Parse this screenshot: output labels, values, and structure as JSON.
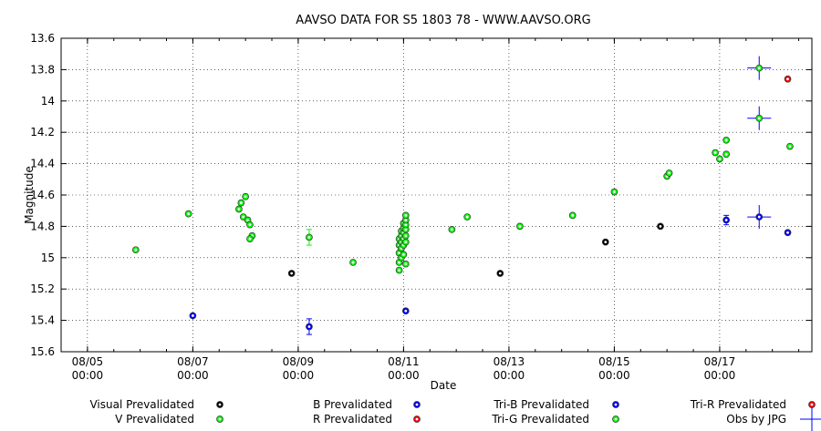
{
  "chart_data": {
    "type": "scatter",
    "title": "AAVSO DATA FOR S5 1803 78 - WWW.AAVSO.ORG",
    "xlabel": "Date",
    "ylabel": "Magnitude",
    "x_unit": "days",
    "xlim": [
      "2000-08-04T12:00",
      "2000-08-18T18:00"
    ],
    "ylim": [
      15.6,
      13.6
    ],
    "y_inverted": true,
    "grid": true,
    "xticks": [
      {
        "x": "2000-08-05T00:00",
        "date": "08/05",
        "time": "00:00"
      },
      {
        "x": "2000-08-07T00:00",
        "date": "08/07",
        "time": "00:00"
      },
      {
        "x": "2000-08-09T00:00",
        "date": "08/09",
        "time": "00:00"
      },
      {
        "x": "2000-08-11T00:00",
        "date": "08/11",
        "time": "00:00"
      },
      {
        "x": "2000-08-13T00:00",
        "date": "08/13",
        "time": "00:00"
      },
      {
        "x": "2000-08-15T00:00",
        "date": "08/15",
        "time": "00:00"
      },
      {
        "x": "2000-08-17T00:00",
        "date": "08/17",
        "time": "00:00"
      }
    ],
    "yticks": [
      {
        "v": 13.6,
        "label": "13.6"
      },
      {
        "v": 13.8,
        "label": "13.8"
      },
      {
        "v": 14.0,
        "label": "14"
      },
      {
        "v": 14.2,
        "label": "14.2"
      },
      {
        "v": 14.4,
        "label": "14.4"
      },
      {
        "v": 14.6,
        "label": "14.6"
      },
      {
        "v": 14.8,
        "label": "14.8"
      },
      {
        "v": 15.0,
        "label": "15"
      },
      {
        "v": 15.2,
        "label": "15.2"
      },
      {
        "v": 15.4,
        "label": "15.4"
      },
      {
        "v": 15.6,
        "label": "15.6"
      }
    ],
    "series": [
      {
        "name": "Visual Prevalidated",
        "color": "#000000",
        "marker": "circle-open",
        "points": [
          {
            "x": "2000-08-08T21:00",
            "y": 15.1
          },
          {
            "x": "2000-08-12T20:00",
            "y": 15.1
          },
          {
            "x": "2000-08-14T20:00",
            "y": 14.9
          },
          {
            "x": "2000-08-15T21:00",
            "y": 14.8
          }
        ]
      },
      {
        "name": "B Prevalidated",
        "color": "#0000ff",
        "marker": "circle-open",
        "points": [
          {
            "x": "2000-08-07T00:00",
            "y": 15.37
          },
          {
            "x": "2000-08-09T05:00",
            "y": 15.44,
            "err": 0.05
          },
          {
            "x": "2000-08-11T01:00",
            "y": 15.34
          },
          {
            "x": "2000-08-17T03:00",
            "y": 14.76,
            "err": 0.03
          },
          {
            "x": "2000-08-18T07:00",
            "y": 14.84
          }
        ]
      },
      {
        "name": "R Prevalidated",
        "color": "#ff0000",
        "marker": "circle-open",
        "points": [
          {
            "x": "2000-08-18T07:00",
            "y": 13.86
          }
        ]
      },
      {
        "name": "Tri-R Prevalidated",
        "color": "#ff0000",
        "marker": "circle-open",
        "points": []
      },
      {
        "name": "Tri-B Prevalidated",
        "color": "#0000ff",
        "marker": "circle-open",
        "points": [
          {
            "x": "2000-08-17T18:00",
            "y": 14.74
          }
        ]
      },
      {
        "name": "Tri-G Prevalidated",
        "color": "#00ff00",
        "marker": "circle-open",
        "points": [
          {
            "x": "2000-08-17T18:00",
            "y": 13.79
          },
          {
            "x": "2000-08-17T18:00",
            "y": 14.11
          }
        ]
      },
      {
        "name": "Obs by JPG",
        "color": "#0000ff",
        "marker": "cross",
        "points": [
          {
            "x": "2000-08-17T18:00",
            "y": 13.79
          },
          {
            "x": "2000-08-17T18:00",
            "y": 14.11
          },
          {
            "x": "2000-08-17T18:00",
            "y": 14.74
          }
        ]
      },
      {
        "name": "V Prevalidated",
        "color": "#00ff00",
        "marker": "circle-open",
        "points": [
          {
            "x": "2000-08-05T22:00",
            "y": 14.95
          },
          {
            "x": "2000-08-06T22:00",
            "y": 14.72
          },
          {
            "x": "2000-08-07T21:00",
            "y": 14.69
          },
          {
            "x": "2000-08-07T22:00",
            "y": 14.65
          },
          {
            "x": "2000-08-08T00:00",
            "y": 14.61
          },
          {
            "x": "2000-08-07T23:00",
            "y": 14.74
          },
          {
            "x": "2000-08-08T01:00",
            "y": 14.76
          },
          {
            "x": "2000-08-08T02:00",
            "y": 14.79
          },
          {
            "x": "2000-08-08T03:00",
            "y": 14.86
          },
          {
            "x": "2000-08-08T02:00",
            "y": 14.88
          },
          {
            "x": "2000-08-09T05:00",
            "y": 14.87,
            "err": 0.05
          },
          {
            "x": "2000-08-10T01:00",
            "y": 15.03
          },
          {
            "x": "2000-08-10T22:00",
            "y": 15.08
          },
          {
            "x": "2000-08-10T22:00",
            "y": 15.03
          },
          {
            "x": "2000-08-10T22:00",
            "y": 14.97
          },
          {
            "x": "2000-08-10T22:00",
            "y": 14.92
          },
          {
            "x": "2000-08-10T22:00",
            "y": 14.88
          },
          {
            "x": "2000-08-10T23:00",
            "y": 15.0
          },
          {
            "x": "2000-08-10T23:00",
            "y": 14.94
          },
          {
            "x": "2000-08-10T23:00",
            "y": 14.9
          },
          {
            "x": "2000-08-10T23:00",
            "y": 14.86
          },
          {
            "x": "2000-08-10T23:00",
            "y": 14.83
          },
          {
            "x": "2000-08-11T00:00",
            "y": 14.98
          },
          {
            "x": "2000-08-11T00:00",
            "y": 14.92
          },
          {
            "x": "2000-08-11T00:00",
            "y": 14.88
          },
          {
            "x": "2000-08-11T00:00",
            "y": 14.84
          },
          {
            "x": "2000-08-11T00:00",
            "y": 14.81
          },
          {
            "x": "2000-08-11T00:00",
            "y": 14.78
          },
          {
            "x": "2000-08-11T01:00",
            "y": 14.9
          },
          {
            "x": "2000-08-11T01:00",
            "y": 14.86
          },
          {
            "x": "2000-08-11T01:00",
            "y": 14.82
          },
          {
            "x": "2000-08-11T01:00",
            "y": 14.79
          },
          {
            "x": "2000-08-11T01:00",
            "y": 14.76
          },
          {
            "x": "2000-08-11T01:00",
            "y": 14.73
          },
          {
            "x": "2000-08-11T01:00",
            "y": 15.04
          },
          {
            "x": "2000-08-11T22:00",
            "y": 14.82
          },
          {
            "x": "2000-08-12T05:00",
            "y": 14.74
          },
          {
            "x": "2000-08-13T05:00",
            "y": 14.8
          },
          {
            "x": "2000-08-14T05:00",
            "y": 14.73
          },
          {
            "x": "2000-08-15T00:00",
            "y": 14.58
          },
          {
            "x": "2000-08-16T00:00",
            "y": 14.48
          },
          {
            "x": "2000-08-16T01:00",
            "y": 14.46
          },
          {
            "x": "2000-08-16T22:00",
            "y": 14.33
          },
          {
            "x": "2000-08-17T00:00",
            "y": 14.37
          },
          {
            "x": "2000-08-17T03:00",
            "y": 14.34
          },
          {
            "x": "2000-08-17T03:00",
            "y": 14.25
          },
          {
            "x": "2000-08-18T08:00",
            "y": 14.29
          }
        ]
      }
    ],
    "legend": {
      "placement": "bottom",
      "entries": [
        {
          "label": "Visual Prevalidated",
          "series": "Visual Prevalidated"
        },
        {
          "label": "B Prevalidated",
          "series": "B Prevalidated"
        },
        {
          "label": "Tri-B Prevalidated",
          "series": "Tri-B Prevalidated"
        },
        {
          "label": "Tri-R Prevalidated",
          "series": "Tri-R Prevalidated"
        },
        {
          "label": "V Prevalidated",
          "series": "V Prevalidated"
        },
        {
          "label": "R Prevalidated",
          "series": "R Prevalidated"
        },
        {
          "label": "Tri-G Prevalidated",
          "series": "Tri-G Prevalidated"
        },
        {
          "label": "Obs by JPG",
          "series": "Obs by JPG"
        }
      ]
    }
  }
}
